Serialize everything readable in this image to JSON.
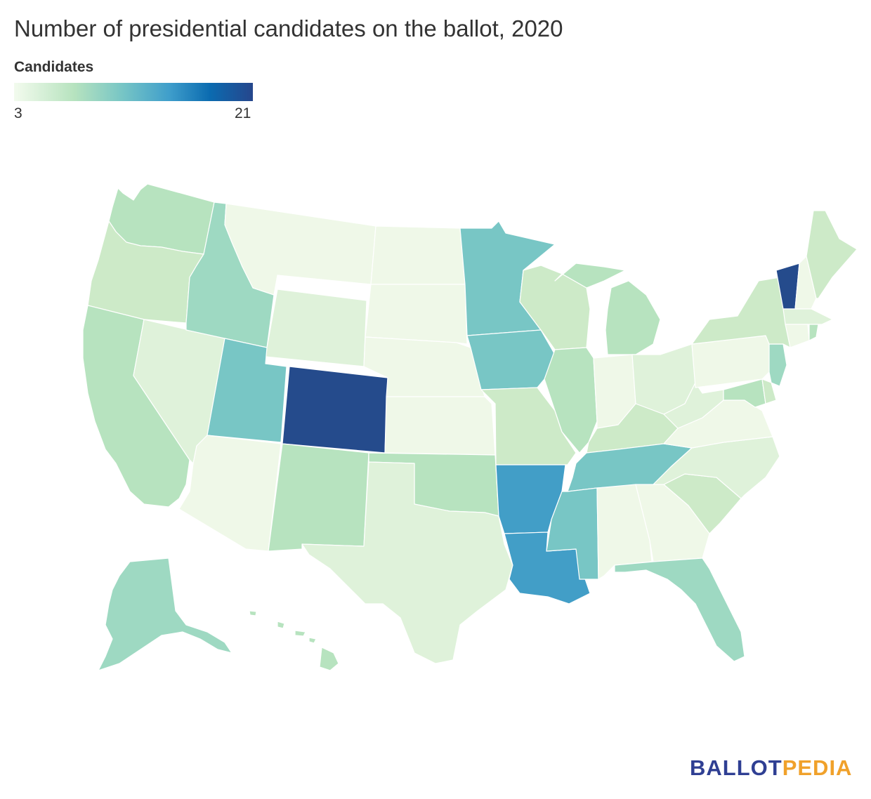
{
  "title": "Number of presidential candidates on the ballot, 2020",
  "legend": {
    "title": "Candidates",
    "min": "3",
    "max": "21",
    "colors": [
      "#f7fcf0",
      "#ccebc5",
      "#7bccc4",
      "#4eb3d3",
      "#0868ac",
      "#2b4a8c"
    ]
  },
  "palette": {
    "c1": "#eff8e8",
    "c2": "#dff2da",
    "c3": "#cdeac8",
    "c4": "#b7e3bf",
    "c5": "#9ed9c2",
    "c6": "#78c6c5",
    "c7": "#429ec7",
    "c8": "#254b8c"
  },
  "logo": {
    "part1": "BALLOT",
    "part2": "PEDIA"
  }
}
